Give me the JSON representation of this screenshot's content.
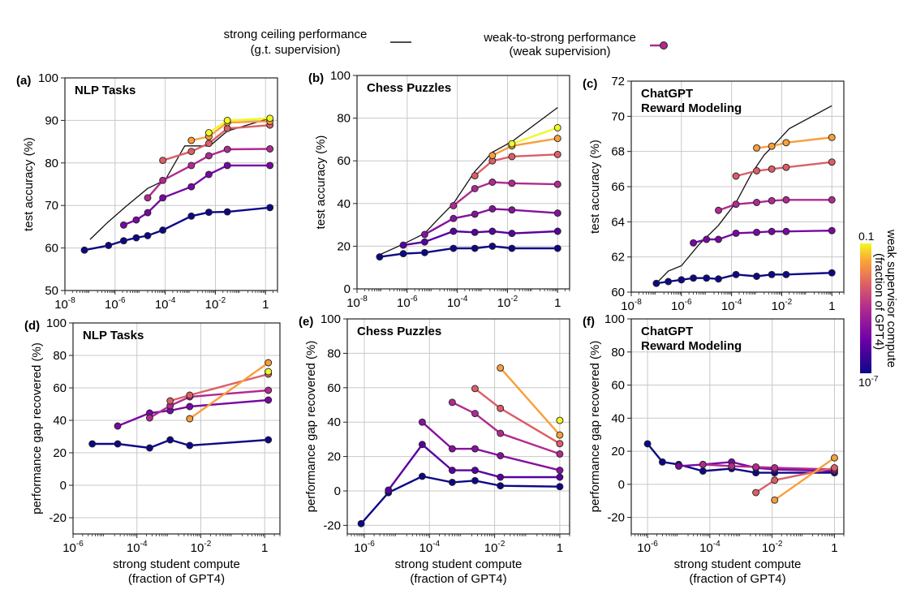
{
  "legend": {
    "ceiling_line1": "strong ceiling performance",
    "ceiling_line2": "(g.t. supervision)",
    "w2s_line1": "weak-to-strong performance",
    "w2s_line2": "(weak supervision)",
    "colorbar_title1": "weak supervisor compute",
    "colorbar_title2": "(fraction of GPT4)",
    "colorbar_top": "0.1",
    "colorbar_bottom_base": "10",
    "colorbar_bottom_exp": "-7"
  },
  "chart_data": [
    {
      "id": "a",
      "panel_label": "(a)",
      "type": "line",
      "title_lines": [
        "NLP Tasks"
      ],
      "ylabel": "test accuracy (%)",
      "xlabel_lines": [],
      "xscale": "log",
      "xlim": [
        1e-08,
        3
      ],
      "ylim": [
        50,
        100
      ],
      "yticks": [
        50,
        60,
        70,
        80,
        90,
        100
      ],
      "xticks": [
        {
          "v": 1e-08,
          "base": "10",
          "exp": "-8"
        },
        {
          "v": 1e-06,
          "base": "10",
          "exp": "-6"
        },
        {
          "v": 0.0001,
          "base": "10",
          "exp": "-4"
        },
        {
          "v": 0.01,
          "base": "10",
          "exp": "-2"
        },
        {
          "v": 1,
          "base": "1",
          "exp": ""
        }
      ],
      "ceiling": {
        "x": [
          1e-07,
          5e-07,
          3e-06,
          2e-05,
          0.0001,
          0.0006,
          0.001,
          0.006,
          0.03,
          1.5
        ],
        "y": [
          62,
          66,
          70,
          74,
          76,
          84,
          84,
          84,
          87.5,
          90.5
        ]
      },
      "series": [
        {
          "c": 0.0,
          "x": [
            6e-08,
            5.5e-07,
            2.2e-06,
            7e-06,
            2e-05,
            8e-05,
            0.0011,
            0.0055,
            0.03,
            1.5
          ],
          "y": [
            59.5,
            60.6,
            61.7,
            62.4,
            62.9,
            64.2,
            67.5,
            68.4,
            68.5,
            69.5
          ]
        },
        {
          "c": 0.3,
          "x": [
            2.2e-06,
            7e-06,
            2e-05,
            8e-05,
            0.0011,
            0.0055,
            0.03,
            1.5
          ],
          "y": [
            65.4,
            66.6,
            68.3,
            71.8,
            74.4,
            77.3,
            79.4,
            79.4
          ]
        },
        {
          "c": 0.5,
          "x": [
            2e-05,
            8e-05,
            0.0011,
            0.0055,
            0.03,
            1.5
          ],
          "y": [
            71.8,
            75.9,
            79.4,
            81.7,
            83.2,
            83.3
          ]
        },
        {
          "c": 0.68,
          "x": [
            8e-05,
            0.0011,
            0.0055,
            0.03,
            1.5
          ],
          "y": [
            80.6,
            82.7,
            84.6,
            88.1,
            88.9
          ]
        },
        {
          "c": 0.85,
          "x": [
            0.0011,
            0.0055,
            0.03,
            1.5
          ],
          "y": [
            85.3,
            86.2,
            89.5,
            89.8
          ]
        },
        {
          "c": 1.0,
          "x": [
            0.0055,
            0.03,
            1.5
          ],
          "y": [
            87.1,
            90.0,
            90.5
          ]
        }
      ]
    },
    {
      "id": "b",
      "panel_label": "(b)",
      "type": "line",
      "title_lines": [
        "Chess Puzzles"
      ],
      "ylabel": "test accuracy (%)",
      "xlabel_lines": [],
      "xscale": "log",
      "xlim": [
        1e-08,
        3
      ],
      "ylim": [
        0,
        100
      ],
      "yticks": [
        0,
        20,
        40,
        60,
        80,
        100
      ],
      "xticks": [
        {
          "v": 1e-08,
          "base": "10",
          "exp": "-8"
        },
        {
          "v": 1e-06,
          "base": "10",
          "exp": "-6"
        },
        {
          "v": 0.0001,
          "base": "10",
          "exp": "-4"
        },
        {
          "v": 0.01,
          "base": "10",
          "exp": "-2"
        },
        {
          "v": 1,
          "base": "1",
          "exp": ""
        }
      ],
      "ceiling": {
        "x": [
          8e-08,
          7e-07,
          5e-06,
          1.5e-05,
          7e-05,
          0.0005,
          0.0025,
          0.015,
          1
        ],
        "y": [
          16,
          21,
          26,
          32,
          40,
          55,
          64,
          69,
          85
        ]
      },
      "series": [
        {
          "c": 0.0,
          "x": [
            8e-08,
            7e-07,
            5e-06,
            7e-05,
            0.0005,
            0.0025,
            0.015,
            1
          ],
          "y": [
            15,
            16.5,
            17,
            19,
            19,
            20,
            19,
            19
          ]
        },
        {
          "c": 0.2,
          "x": [
            7e-07,
            5e-06,
            7e-05,
            0.0005,
            0.0025,
            0.015,
            1
          ],
          "y": [
            20.5,
            22,
            27,
            26.5,
            27,
            26,
            27
          ]
        },
        {
          "c": 0.35,
          "x": [
            5e-06,
            7e-05,
            0.0005,
            0.0025,
            0.015,
            1
          ],
          "y": [
            25.5,
            33,
            35,
            37.5,
            37,
            35.5
          ]
        },
        {
          "c": 0.5,
          "x": [
            7e-05,
            0.0005,
            0.0025,
            0.015,
            1
          ],
          "y": [
            39,
            47,
            50,
            49.5,
            49
          ]
        },
        {
          "c": 0.68,
          "x": [
            0.0005,
            0.0025,
            0.015,
            1
          ],
          "y": [
            53,
            60,
            62,
            63
          ]
        },
        {
          "c": 0.85,
          "x": [
            0.0025,
            0.015,
            1
          ],
          "y": [
            62.5,
            67,
            70.5
          ]
        },
        {
          "c": 1.0,
          "x": [
            0.015,
            1
          ],
          "y": [
            68,
            75.5
          ]
        }
      ]
    },
    {
      "id": "c",
      "panel_label": "(c)",
      "type": "line",
      "title_lines": [
        "ChatGPT",
        "Reward Modeling"
      ],
      "ylabel": "test accuracy (%)",
      "xlabel_lines": [],
      "xscale": "log",
      "xlim": [
        1e-08,
        3
      ],
      "ylim": [
        60,
        72
      ],
      "yticks": [
        60,
        62,
        64,
        66,
        68,
        70,
        72
      ],
      "xticks": [
        {
          "v": 1e-08,
          "base": "10",
          "exp": "-8"
        },
        {
          "v": 1e-06,
          "base": "10",
          "exp": "-6"
        },
        {
          "v": 0.0001,
          "base": "10",
          "exp": "-4"
        },
        {
          "v": 0.01,
          "base": "10",
          "exp": "-2"
        },
        {
          "v": 1,
          "base": "1",
          "exp": ""
        }
      ],
      "ceiling": {
        "x": [
          1e-07,
          3e-07,
          1e-06,
          5e-06,
          3e-05,
          0.00015,
          0.0006,
          0.002,
          0.006,
          0.02,
          1
        ],
        "y": [
          60.5,
          61.2,
          61.5,
          62.7,
          63.8,
          65.1,
          66.7,
          67.8,
          68.5,
          69.3,
          70.6
        ]
      },
      "series": [
        {
          "c": 0.0,
          "x": [
            1e-07,
            3e-07,
            1e-06,
            3e-06,
            1e-05,
            3e-05,
            0.00015,
            0.001,
            0.004,
            0.015,
            1
          ],
          "y": [
            60.5,
            60.6,
            60.7,
            60.8,
            60.8,
            60.75,
            61.0,
            60.9,
            61.0,
            61.0,
            61.1
          ]
        },
        {
          "c": 0.3,
          "x": [
            3e-06,
            1e-05,
            3e-05,
            0.00015,
            0.001,
            0.004,
            0.015,
            1
          ],
          "y": [
            62.8,
            63.0,
            63.0,
            63.35,
            63.4,
            63.45,
            63.45,
            63.5
          ]
        },
        {
          "c": 0.5,
          "x": [
            3e-05,
            0.00015,
            0.001,
            0.004,
            0.015,
            1
          ],
          "y": [
            64.65,
            65.0,
            65.1,
            65.2,
            65.25,
            65.25
          ]
        },
        {
          "c": 0.68,
          "x": [
            0.00015,
            0.001,
            0.004,
            0.015,
            1
          ],
          "y": [
            66.6,
            66.9,
            67.0,
            67.1,
            67.4
          ]
        },
        {
          "c": 0.85,
          "x": [
            0.001,
            0.004,
            0.015,
            1
          ],
          "y": [
            68.2,
            68.3,
            68.5,
            68.8
          ]
        }
      ]
    },
    {
      "id": "d",
      "panel_label": "(d)",
      "type": "line",
      "title_lines": [
        "NLP Tasks"
      ],
      "ylabel": "performance gap recovered (%)",
      "xlabel_lines": [
        "strong student compute",
        "(fraction of GPT4)"
      ],
      "xscale": "log",
      "xlim": [
        1e-06,
        3
      ],
      "ylim": [
        -30,
        100
      ],
      "yticks": [
        -20,
        0,
        20,
        40,
        60,
        80,
        100
      ],
      "xticks": [
        {
          "v": 1e-06,
          "base": "10",
          "exp": "-6"
        },
        {
          "v": 0.0001,
          "base": "10",
          "exp": "-4"
        },
        {
          "v": 0.01,
          "base": "10",
          "exp": "-2"
        },
        {
          "v": 1,
          "base": "1",
          "exp": ""
        }
      ],
      "ceiling": null,
      "series": [
        {
          "c": 0.0,
          "x": [
            4e-06,
            2.5e-05,
            0.00025,
            0.0011,
            0.0045,
            1.3
          ],
          "y": [
            25.5,
            25.5,
            23.0,
            28.0,
            24.5,
            28.0
          ]
        },
        {
          "c": 0.3,
          "x": [
            2.5e-05,
            0.00025,
            0.0011,
            0.0045,
            1.3
          ],
          "y": [
            36.5,
            44.5,
            46.0,
            48.5,
            52.5
          ]
        },
        {
          "c": 0.5,
          "x": [
            0.00025,
            0.0011,
            0.0045,
            1.3
          ],
          "y": [
            41.5,
            49.0,
            54.5,
            58.5
          ]
        },
        {
          "c": 0.68,
          "x": [
            0.0011,
            0.0045,
            1.3
          ],
          "y": [
            52.0,
            55.5,
            68.5
          ]
        },
        {
          "c": 0.85,
          "x": [
            0.0045,
            1.3
          ],
          "y": [
            41.0,
            75.5
          ]
        },
        {
          "c": 1.0,
          "x": [
            1.3
          ],
          "y": [
            70.0
          ]
        }
      ]
    },
    {
      "id": "e",
      "panel_label": "(e)",
      "type": "line",
      "title_lines": [
        "Chess Puzzles"
      ],
      "ylabel": "performance gap recovered (%)",
      "xlabel_lines": [
        "strong student compute",
        "(fraction of GPT4)"
      ],
      "xscale": "log",
      "xlim": [
        3e-07,
        2
      ],
      "ylim": [
        -25,
        100
      ],
      "yticks": [
        -20,
        0,
        20,
        40,
        60,
        80,
        100
      ],
      "xticks": [
        {
          "v": 1e-06,
          "base": "10",
          "exp": "-6"
        },
        {
          "v": 0.0001,
          "base": "10",
          "exp": "-4"
        },
        {
          "v": 0.01,
          "base": "10",
          "exp": "-2"
        },
        {
          "v": 1,
          "base": "1",
          "exp": ""
        }
      ],
      "ceiling": null,
      "series": [
        {
          "c": 0.0,
          "x": [
            8e-07,
            5.5e-06,
            6e-05,
            0.0005,
            0.0025,
            0.015,
            1
          ],
          "y": [
            -19,
            -1,
            8.5,
            5,
            6,
            3,
            2.5
          ]
        },
        {
          "c": 0.2,
          "x": [
            5.5e-06,
            6e-05,
            0.0005,
            0.0025,
            0.015,
            1
          ],
          "y": [
            0.5,
            27,
            12,
            12,
            8,
            8
          ]
        },
        {
          "c": 0.35,
          "x": [
            6e-05,
            0.0005,
            0.0025,
            0.015,
            1
          ],
          "y": [
            40,
            24.5,
            24.5,
            20.5,
            12
          ]
        },
        {
          "c": 0.5,
          "x": [
            0.0005,
            0.0025,
            0.015,
            1
          ],
          "y": [
            51.5,
            45,
            33.5,
            21.5
          ]
        },
        {
          "c": 0.68,
          "x": [
            0.0025,
            0.015,
            1
          ],
          "y": [
            59.5,
            48,
            27.5
          ]
        },
        {
          "c": 0.85,
          "x": [
            0.015,
            1
          ],
          "y": [
            71.5,
            32.5
          ]
        },
        {
          "c": 1.0,
          "x": [
            1
          ],
          "y": [
            41
          ]
        }
      ]
    },
    {
      "id": "f",
      "panel_label": "(f)",
      "type": "line",
      "title_lines": [
        "ChatGPT",
        "Reward Modeling"
      ],
      "ylabel": "performance gap recovered (%)",
      "xlabel_lines": [
        "strong student compute",
        "(fraction of GPT4)"
      ],
      "xscale": "log",
      "xlim": [
        3e-07,
        2
      ],
      "ylim": [
        -30,
        100
      ],
      "yticks": [
        -20,
        0,
        20,
        40,
        60,
        80,
        100
      ],
      "xticks": [
        {
          "v": 1e-06,
          "base": "10",
          "exp": "-6"
        },
        {
          "v": 0.0001,
          "base": "10",
          "exp": "-4"
        },
        {
          "v": 0.01,
          "base": "10",
          "exp": "-2"
        },
        {
          "v": 1,
          "base": "1",
          "exp": ""
        }
      ],
      "ceiling": null,
      "series": [
        {
          "c": 0.0,
          "x": [
            1e-06,
            3e-06,
            1e-05,
            6e-05,
            0.0005,
            0.003,
            0.012,
            1
          ],
          "y": [
            24.5,
            13.5,
            12,
            8,
            9.5,
            7,
            7,
            7
          ]
        },
        {
          "c": 0.3,
          "x": [
            1e-05,
            6e-05,
            0.0005,
            0.003,
            0.012,
            1
          ],
          "y": [
            11,
            12,
            13.5,
            10,
            9,
            8
          ]
        },
        {
          "c": 0.5,
          "x": [
            6e-05,
            0.0005,
            0.003,
            0.012,
            1
          ],
          "y": [
            12,
            11,
            10.5,
            10,
            9
          ]
        },
        {
          "c": 0.68,
          "x": [
            0.003,
            0.012,
            1
          ],
          "y": [
            -5,
            2.5,
            10
          ]
        },
        {
          "c": 0.85,
          "x": [
            0.012,
            1
          ],
          "y": [
            -9.5,
            16
          ]
        }
      ]
    }
  ]
}
